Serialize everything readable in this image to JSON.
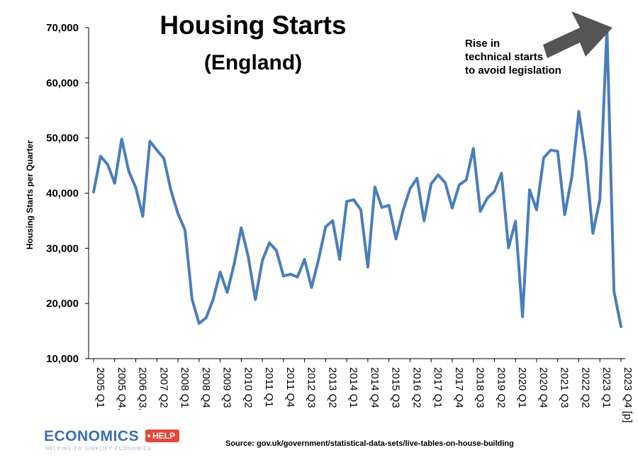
{
  "chart_data": {
    "type": "line",
    "title": "Housing Starts",
    "subtitle": "(England)",
    "ylabel": "Housing Starts per Quarter",
    "xlabel": "",
    "ylim": [
      10000,
      70000
    ],
    "yticks": [
      10000,
      20000,
      30000,
      40000,
      50000,
      60000,
      70000
    ],
    "ytick_labels": [
      "10,000",
      "20,000",
      "30,000",
      "40,000",
      "50,000",
      "60,000",
      "70,000"
    ],
    "xtick_labels": [
      "2005 Q1",
      "2005 Q4.",
      "2006 Q3.",
      "2007 Q2",
      "2008 Q1",
      "2008 Q4",
      "2009 Q3",
      "2010 Q2",
      "2011 Q1",
      "2011 Q4",
      "2012 Q3",
      "2013 Q2",
      "2014 Q1",
      "2014 Q4",
      "2015 Q3",
      "2016 Q2",
      "2017 Q1",
      "2017 Q4",
      "2018 Q3",
      "2019 Q2",
      "2020 Q1",
      "2020 Q4",
      "2021 Q3",
      "2022 Q2",
      "2023 Q1",
      "2023 Q4 [p]"
    ],
    "grid": false,
    "legend": "none",
    "series": [
      {
        "color": "#4a7ebb",
        "values": [
          40200,
          46700,
          45200,
          41800,
          49800,
          44000,
          41000,
          35800,
          49400,
          47800,
          46300,
          40500,
          36300,
          33300,
          20800,
          16400,
          17400,
          20700,
          25700,
          22000,
          27200,
          33700,
          28500,
          20700,
          27800,
          31000,
          29600,
          25000,
          25300,
          24800,
          28000,
          22900,
          28000,
          33900,
          35000,
          28000,
          38500,
          38800,
          37000,
          26600,
          41100,
          37400,
          37800,
          31700,
          36800,
          40800,
          42700,
          35000,
          41700,
          43300,
          41900,
          37300,
          41500,
          42400,
          48100,
          36700,
          39100,
          40300,
          43600,
          30100,
          34900,
          17600,
          40600,
          37000,
          46400,
          47800,
          47600,
          36100,
          42900,
          54800,
          46100,
          32700,
          38800,
          70000,
          22200,
          15800
        ]
      }
    ],
    "annotation": {
      "lines": [
        "Rise in",
        "technical starts",
        "to avoid legislation"
      ],
      "arrow_color": "#555555"
    }
  },
  "source": "Source:  gov.uk/government/statistical-data-sets/live-tables-on-house-building",
  "logo": {
    "main": "ECONOMICS",
    "tag": "HELP",
    "sub": "HELPING TO SIMPLIFY ECONOMICS"
  }
}
